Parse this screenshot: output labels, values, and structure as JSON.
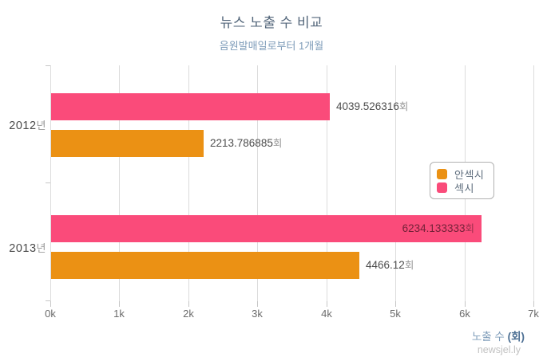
{
  "title": "뉴스 노출 수 비교",
  "subtitle": "음원발매일로부터 1개월",
  "watermark": "newsjel.ly",
  "x_axis": {
    "ticks": [
      "0k",
      "1k",
      "2k",
      "3k",
      "4k",
      "5k",
      "6k",
      "7k"
    ],
    "title_text": "노출 수 ",
    "title_unit": "(회)"
  },
  "y_axis": {
    "categories": [
      {
        "year": "2012",
        "suffix": "년"
      },
      {
        "year": "2013",
        "suffix": "년"
      }
    ]
  },
  "legend": {
    "items": [
      {
        "label": "안섹시",
        "color": "#EB9114"
      },
      {
        "label": "섹시",
        "color": "#FA4B7A"
      }
    ]
  },
  "colors": {
    "pink": "#FA4B7A",
    "orange": "#EB9114",
    "grid": "#dcdcdc",
    "title": "#54677b",
    "subtitle": "#7e9cb9"
  },
  "chart_data": {
    "type": "bar",
    "orientation": "horizontal",
    "title": "뉴스 노출 수 비교",
    "subtitle": "음원발매일로부터 1개월",
    "categories": [
      "2012년",
      "2013년"
    ],
    "series": [
      {
        "name": "섹시",
        "color": "#FA4B7A",
        "values": [
          4039.526316,
          6234.133333
        ],
        "labels": [
          "4039.526316회",
          "6234.133333회"
        ]
      },
      {
        "name": "안섹시",
        "color": "#EB9114",
        "values": [
          2213.786885,
          4466.12
        ],
        "labels": [
          "2213.786885회",
          "4466.12회"
        ]
      }
    ],
    "value_suffix": "회",
    "xlabel": "노출 수 (회)",
    "xlim": [
      0,
      7000
    ],
    "grid": true,
    "legend_position": "right-middle"
  }
}
